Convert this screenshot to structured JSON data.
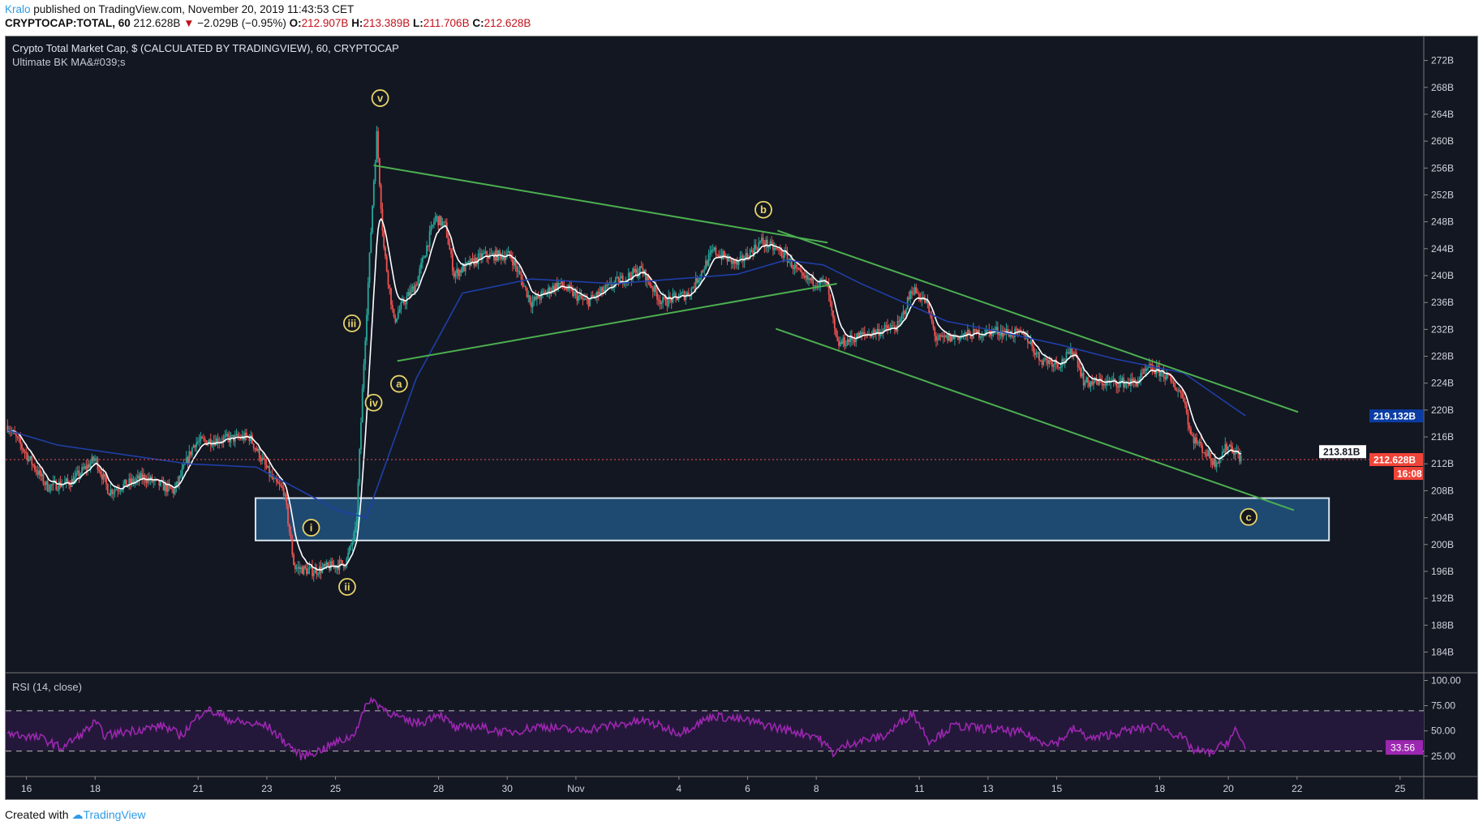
{
  "header": {
    "author": "Kralo",
    "published": " published on TradingView.com, November 20, 2019 11:43:53 CET",
    "symbol": "CRYPTOCAP:TOTAL, 60",
    "last": "212.628B",
    "change": "−2.029B (−0.95%)",
    "o_label": "O:",
    "o": "212.907B",
    "h_label": "H:",
    "h": "213.389B",
    "l_label": "L:",
    "l": "211.706B",
    "c_label": "C:",
    "c": "212.628B"
  },
  "chart_title": "Crypto Total Market Cap, $ (CALCULATED BY TRADINGVIEW), 60, CRYPTOCAP",
  "indicator": "Ultimate BK MA&#039;s",
  "rsi_label": "RSI (14, close)",
  "footer": {
    "created": "Created with",
    "brand": "TradingView"
  },
  "colors": {
    "up": "#26a69a",
    "down": "#ef5350",
    "ma_slow": "#1f3fa8",
    "ma_fast": "#ffffff",
    "trend": "#4caf50",
    "labels": "#e8d46a",
    "rsi": "#9c27b0",
    "zone": "#1e4a72"
  },
  "chart_data": {
    "type": "candlestick",
    "timeframe": "60",
    "x_ticks": [
      {
        "day": 0,
        "label": "16"
      },
      {
        "day": 2,
        "label": "18"
      },
      {
        "day": 5,
        "label": "21"
      },
      {
        "day": 7,
        "label": "23"
      },
      {
        "day": 9,
        "label": "25"
      },
      {
        "day": 12,
        "label": "28"
      },
      {
        "day": 14,
        "label": "30"
      },
      {
        "day": 16,
        "label": "Nov"
      },
      {
        "day": 19,
        "label": "4"
      },
      {
        "day": 21,
        "label": "6"
      },
      {
        "day": 23,
        "label": "8"
      },
      {
        "day": 26,
        "label": "11"
      },
      {
        "day": 28,
        "label": "13"
      },
      {
        "day": 30,
        "label": "15"
      },
      {
        "day": 33,
        "label": "18"
      },
      {
        "day": 35,
        "label": "20"
      },
      {
        "day": 37,
        "label": "22"
      },
      {
        "day": 40,
        "label": "25"
      }
    ],
    "x_unit": "days since Oct 16, 2019",
    "y_ticks": [
      "272B",
      "268B",
      "264B",
      "260B",
      "256B",
      "252B",
      "248B",
      "244B",
      "240B",
      "236B",
      "232B",
      "228B",
      "224B",
      "220B",
      "216B",
      "212B",
      "208B",
      "204B",
      "200B",
      "196B",
      "192B",
      "188B",
      "184B"
    ],
    "y_range": [
      181,
      276
    ],
    "price_path": [
      [
        -0.55,
        217.7
      ],
      [
        -0.2,
        215
      ],
      [
        0.6,
        208.6
      ],
      [
        1.3,
        209.3
      ],
      [
        2,
        212.8
      ],
      [
        2.4,
        207.9
      ],
      [
        3.4,
        210
      ],
      [
        4.3,
        207.9
      ],
      [
        4.9,
        215.2
      ],
      [
        5.6,
        215.6
      ],
      [
        6.5,
        216
      ],
      [
        7.2,
        209.3
      ],
      [
        7.5,
        208
      ],
      [
        7.8,
        196.6
      ],
      [
        8.3,
        196
      ],
      [
        9.3,
        197.3
      ],
      [
        9.6,
        202.3
      ],
      [
        9.8,
        224.8
      ],
      [
        10.1,
        252.9
      ],
      [
        10.2,
        261
      ],
      [
        10.4,
        244.4
      ],
      [
        10.7,
        233.2
      ],
      [
        10.9,
        235.3
      ],
      [
        11.35,
        238.8
      ],
      [
        11.9,
        248.7
      ],
      [
        12.2,
        247.3
      ],
      [
        12.45,
        240.2
      ],
      [
        13.3,
        243
      ],
      [
        14.1,
        243
      ],
      [
        14.7,
        236
      ],
      [
        15.5,
        238.8
      ],
      [
        16.3,
        236
      ],
      [
        17.1,
        238.8
      ],
      [
        17.9,
        240.9
      ],
      [
        18.5,
        236
      ],
      [
        19.3,
        237.4
      ],
      [
        20,
        243.7
      ],
      [
        20.7,
        241.6
      ],
      [
        21.4,
        245.1
      ],
      [
        22.1,
        243
      ],
      [
        22.6,
        239.5
      ],
      [
        23.3,
        238.8
      ],
      [
        23.6,
        229.7
      ],
      [
        24.3,
        231.1
      ],
      [
        25.4,
        232.5
      ],
      [
        25.8,
        238.1
      ],
      [
        26.2,
        236
      ],
      [
        26.5,
        230.4
      ],
      [
        27.3,
        231.1
      ],
      [
        28.2,
        231.8
      ],
      [
        29.1,
        231.1
      ],
      [
        29.5,
        227.6
      ],
      [
        30.1,
        226.9
      ],
      [
        30.5,
        229
      ],
      [
        30.8,
        224.1
      ],
      [
        31.7,
        224.1
      ],
      [
        32.3,
        224.1
      ],
      [
        32.7,
        226.2
      ],
      [
        33.1,
        225.5
      ],
      [
        33.7,
        222
      ],
      [
        33.9,
        216.3
      ],
      [
        34.6,
        212.1
      ],
      [
        35,
        214.9
      ],
      [
        35.4,
        212.628
      ]
    ],
    "ma_slow": [
      [
        -0.55,
        217
      ],
      [
        0.9,
        214.8
      ],
      [
        4.7,
        212
      ],
      [
        6.7,
        211.5
      ],
      [
        9.1,
        205
      ],
      [
        9.9,
        204
      ],
      [
        11.35,
        224.7
      ],
      [
        12.7,
        237.4
      ],
      [
        14.7,
        239.5
      ],
      [
        17.1,
        238.8
      ],
      [
        20.7,
        240.2
      ],
      [
        22.1,
        242.3
      ],
      [
        23.2,
        241.6
      ],
      [
        24.3,
        238.8
      ],
      [
        26.8,
        233.2
      ],
      [
        28.2,
        231.8
      ],
      [
        30.1,
        229.7
      ],
      [
        31.7,
        227.6
      ],
      [
        33.7,
        225.5
      ],
      [
        35.5,
        219.132
      ]
    ],
    "trendlines": [
      [
        [
          10.11,
          256.4
        ],
        [
          23.33,
          244.9
        ]
      ],
      [
        [
          10.8,
          227.3
        ],
        [
          23.6,
          238.8
        ]
      ],
      [
        [
          21.87,
          246.7
        ],
        [
          37.03,
          219.7
        ]
      ],
      [
        [
          21.82,
          232.1
        ],
        [
          36.91,
          205.1
        ]
      ]
    ],
    "wave_labels": [
      {
        "t": "v",
        "day": 10.3,
        "price": 266.4
      },
      {
        "t": "iii",
        "day": 9.48,
        "price": 232.9
      },
      {
        "t": "iv",
        "day": 10.11,
        "price": 221.1
      },
      {
        "t": "a",
        "day": 10.85,
        "price": 223.9
      },
      {
        "t": "b",
        "day": 21.46,
        "price": 249.8
      },
      {
        "t": "i",
        "day": 8.29,
        "price": 202.5
      },
      {
        "t": "ii",
        "day": 9.34,
        "price": 193.7
      },
      {
        "t": "c",
        "day": 35.59,
        "price": 204.1
      }
    ],
    "zone": {
      "day_from": 6.67,
      "day_to": 37.93,
      "price_from": 200.6,
      "price_to": 206.9
    },
    "badges": {
      "ma": "219.132B",
      "hidden": "213.81B",
      "last": "212.628B",
      "countdown": "16:08"
    },
    "rsi": {
      "ticks": [
        "100.00",
        "75.00",
        "50.00",
        "25.00"
      ],
      "bands": [
        70,
        30
      ],
      "last": "33.56",
      "path": [
        [
          -0.55,
          48
        ],
        [
          0.5,
          42
        ],
        [
          1,
          33
        ],
        [
          1.5,
          44
        ],
        [
          2,
          58
        ],
        [
          2.3,
          45
        ],
        [
          3,
          50
        ],
        [
          4,
          55
        ],
        [
          4.5,
          45
        ],
        [
          5.2,
          72
        ],
        [
          6,
          60
        ],
        [
          6.5,
          57
        ],
        [
          7,
          55
        ],
        [
          7.5,
          40
        ],
        [
          8,
          25
        ],
        [
          8.5,
          30
        ],
        [
          9,
          38
        ],
        [
          9.5,
          45
        ],
        [
          10,
          82
        ],
        [
          10.5,
          70
        ],
        [
          11,
          60
        ],
        [
          11.5,
          58
        ],
        [
          12,
          68
        ],
        [
          12.5,
          52
        ],
        [
          13,
          55
        ],
        [
          14,
          48
        ],
        [
          15,
          55
        ],
        [
          16,
          50
        ],
        [
          17,
          55
        ],
        [
          18,
          60
        ],
        [
          19,
          48
        ],
        [
          20,
          65
        ],
        [
          21,
          60
        ],
        [
          22,
          52
        ],
        [
          23,
          45
        ],
        [
          23.5,
          28
        ],
        [
          24,
          38
        ],
        [
          25,
          45
        ],
        [
          25.8,
          68
        ],
        [
          26.3,
          40
        ],
        [
          27,
          55
        ],
        [
          28,
          52
        ],
        [
          29,
          48
        ],
        [
          29.5,
          40
        ],
        [
          30,
          38
        ],
        [
          30.5,
          52
        ],
        [
          31,
          42
        ],
        [
          32,
          50
        ],
        [
          33,
          55
        ],
        [
          33.7,
          42
        ],
        [
          34,
          30
        ],
        [
          34.5,
          28
        ],
        [
          35,
          40
        ],
        [
          35.2,
          50
        ],
        [
          35.5,
          33.56
        ]
      ]
    }
  }
}
